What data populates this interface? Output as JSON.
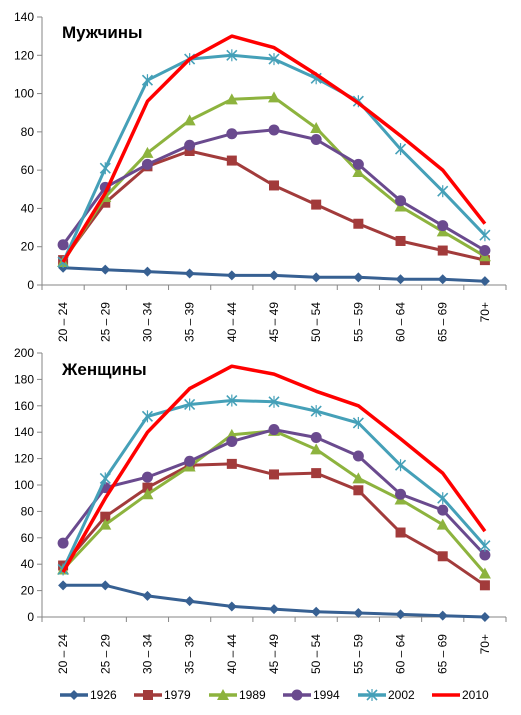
{
  "chart_data": [
    {
      "type": "line",
      "title": "Мужчины",
      "categories": [
        "20 – 24",
        "25 – 29",
        "30 – 34",
        "35 – 39",
        "40 – 44",
        "45 – 49",
        "50 – 54",
        "55 – 59",
        "60 – 64",
        "65 – 69",
        "70+"
      ],
      "ylim": [
        0,
        140
      ],
      "yticks": [
        0,
        20,
        40,
        60,
        80,
        100,
        120,
        140
      ],
      "grid": false,
      "series": [
        {
          "name": "1926",
          "values": [
            9,
            8,
            7,
            6,
            5,
            5,
            4,
            4,
            3,
            3,
            2
          ]
        },
        {
          "name": "1979",
          "values": [
            13,
            43,
            62,
            70,
            65,
            52,
            42,
            32,
            23,
            18,
            13
          ]
        },
        {
          "name": "1989",
          "values": [
            12,
            46,
            69,
            86,
            97,
            98,
            82,
            59,
            41,
            28,
            15
          ]
        },
        {
          "name": "1994",
          "values": [
            21,
            51,
            63,
            73,
            79,
            81,
            76,
            63,
            44,
            31,
            18
          ]
        },
        {
          "name": "2002",
          "values": [
            12,
            61,
            107,
            118,
            120,
            118,
            108,
            96,
            71,
            49,
            26
          ]
        },
        {
          "name": "2010",
          "values": [
            12,
            48,
            96,
            118,
            130,
            124,
            110,
            95,
            78,
            60,
            32
          ]
        }
      ]
    },
    {
      "type": "line",
      "title": "Женщины",
      "categories": [
        "20 – 24",
        "25 – 29",
        "30 – 34",
        "35 – 39",
        "40 – 44",
        "45 – 49",
        "50 – 54",
        "55 – 59",
        "60 – 64",
        "65 – 69",
        "70+"
      ],
      "ylim": [
        0,
        200
      ],
      "yticks": [
        0,
        20,
        40,
        60,
        80,
        100,
        120,
        140,
        160,
        180,
        200
      ],
      "grid": false,
      "series": [
        {
          "name": "1926",
          "values": [
            24,
            24,
            16,
            12,
            8,
            6,
            4,
            3,
            2,
            1,
            0
          ]
        },
        {
          "name": "1979",
          "values": [
            39,
            76,
            98,
            115,
            116,
            108,
            109,
            96,
            64,
            46,
            24
          ]
        },
        {
          "name": "1989",
          "values": [
            36,
            70,
            93,
            114,
            138,
            141,
            127,
            105,
            89,
            70,
            33
          ]
        },
        {
          "name": "1994",
          "values": [
            56,
            98,
            106,
            118,
            133,
            142,
            136,
            122,
            93,
            81,
            47
          ]
        },
        {
          "name": "2002",
          "values": [
            36,
            105,
            152,
            161,
            164,
            163,
            156,
            147,
            115,
            90,
            54
          ]
        },
        {
          "name": "2010",
          "values": [
            34,
            90,
            140,
            173,
            190,
            184,
            171,
            160,
            135,
            109,
            65
          ]
        }
      ]
    }
  ],
  "legend": {
    "position": "bottom",
    "items": [
      {
        "name": "1926",
        "color": "#376092",
        "marker": "diamond"
      },
      {
        "name": "1979",
        "color": "#a23b3b",
        "marker": "square"
      },
      {
        "name": "1989",
        "color": "#8db33e",
        "marker": "triangle"
      },
      {
        "name": "1994",
        "color": "#6a4a8e",
        "marker": "circle"
      },
      {
        "name": "2002",
        "color": "#45a0b8",
        "marker": "x"
      },
      {
        "name": "2010",
        "color": "#ff0000",
        "marker": "none"
      }
    ]
  }
}
